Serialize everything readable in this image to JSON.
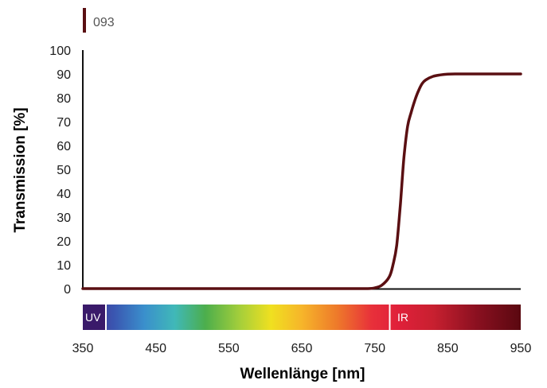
{
  "chart_data": {
    "type": "line",
    "xlabel": "Wellenlänge [nm]",
    "ylabel": "Transmission [%]",
    "xlim": [
      350,
      950
    ],
    "ylim": [
      0,
      100
    ],
    "x_ticks": [
      "350",
      "450",
      "550",
      "650",
      "750",
      "850",
      "950"
    ],
    "y_ticks": [
      "0",
      "10",
      "20",
      "30",
      "40",
      "50",
      "60",
      "70",
      "80",
      "90",
      "100"
    ],
    "grid": false,
    "legend_position": "top-left",
    "spectrum_labels": {
      "uv": "UV",
      "ir": "IR"
    },
    "series": [
      {
        "name": "093",
        "color": "#5a0f12",
        "x": [
          350,
          700,
          720,
          740,
          750,
          760,
          770,
          775,
          780,
          785,
          790,
          795,
          800,
          805,
          810,
          815,
          820,
          830,
          840,
          850,
          860,
          870,
          880,
          900,
          950
        ],
        "y": [
          0,
          0,
          0,
          0,
          0.3,
          1.5,
          5,
          10,
          18,
          35,
          55,
          68,
          74,
          79,
          83,
          86,
          87.5,
          89,
          89.6,
          89.9,
          90,
          90,
          90,
          90,
          90
        ]
      }
    ]
  }
}
